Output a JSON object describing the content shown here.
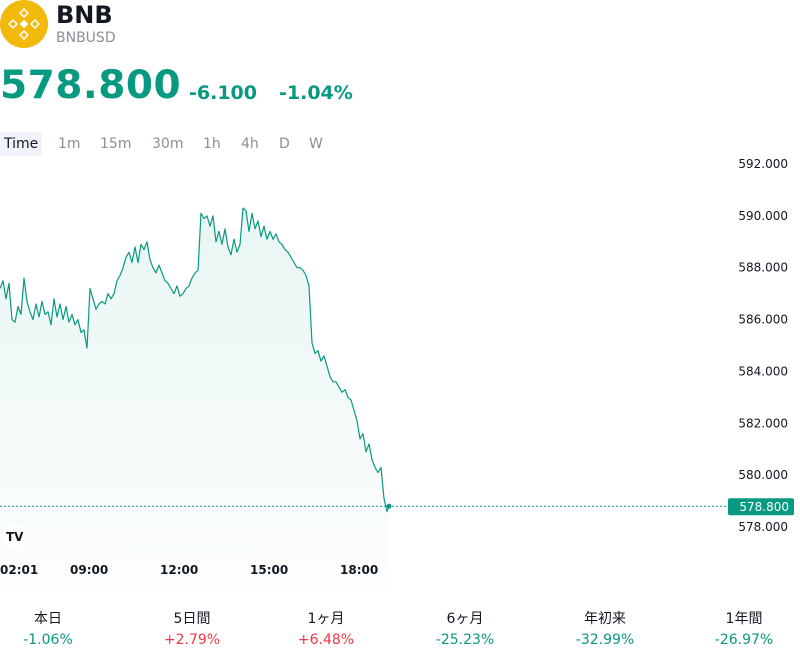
{
  "header": {
    "symbol": "BNB",
    "ticker": "BNBUSD",
    "logo_icon": "bnb-logo-icon",
    "price": "578.800",
    "change": "-6.100",
    "change_pct": "-1.04%"
  },
  "colors": {
    "accent": "#089981",
    "negative_perf": "#089981",
    "positive_perf": "#f23645",
    "logo": "#F0B90B"
  },
  "tabs": [
    {
      "label": "Time",
      "active": true
    },
    {
      "label": "1m"
    },
    {
      "label": "15m"
    },
    {
      "label": "30m"
    },
    {
      "label": "1h"
    },
    {
      "label": "4h"
    },
    {
      "label": "D"
    },
    {
      "label": "W"
    }
  ],
  "chart_data": {
    "type": "area",
    "ylim": [
      577.5,
      592.2
    ],
    "y_ticks": [
      "578.000",
      "580.000",
      "582.000",
      "584.000",
      "586.000",
      "588.000",
      "590.000",
      "592.000"
    ],
    "x_ticks": [
      "02:01",
      "09:00",
      "12:00",
      "15:00",
      "18:00"
    ],
    "last_price_label": "578.800",
    "watermark_icon": "tradingview-logo-icon",
    "points": [
      [
        0,
        587.2
      ],
      [
        3,
        587.5
      ],
      [
        6,
        586.8
      ],
      [
        9,
        587.4
      ],
      [
        12,
        586.0
      ],
      [
        15,
        585.9
      ],
      [
        18,
        586.5
      ],
      [
        21,
        586.2
      ],
      [
        24,
        587.6
      ],
      [
        27,
        586.7
      ],
      [
        30,
        586.3
      ],
      [
        33,
        586.0
      ],
      [
        36,
        586.6
      ],
      [
        39,
        586.1
      ],
      [
        42,
        586.7
      ],
      [
        45,
        586.2
      ],
      [
        48,
        586.3
      ],
      [
        51,
        585.8
      ],
      [
        54,
        586.8
      ],
      [
        57,
        586.1
      ],
      [
        60,
        586.6
      ],
      [
        63,
        586.0
      ],
      [
        66,
        586.5
      ],
      [
        69,
        585.9
      ],
      [
        72,
        586.2
      ],
      [
        75,
        585.8
      ],
      [
        78,
        586.0
      ],
      [
        81,
        585.5
      ],
      [
        84,
        585.6
      ],
      [
        87,
        584.9
      ],
      [
        90,
        587.2
      ],
      [
        93,
        586.8
      ],
      [
        96,
        586.4
      ],
      [
        99,
        586.6
      ],
      [
        102,
        586.7
      ],
      [
        105,
        586.6
      ],
      [
        108,
        587.0
      ],
      [
        111,
        586.8
      ],
      [
        114,
        587.0
      ],
      [
        117,
        587.5
      ],
      [
        120,
        587.7
      ],
      [
        123,
        588.0
      ],
      [
        126,
        588.4
      ],
      [
        129,
        588.6
      ],
      [
        132,
        588.2
      ],
      [
        135,
        588.8
      ],
      [
        138,
        588.2
      ],
      [
        141,
        588.9
      ],
      [
        144,
        588.7
      ],
      [
        147,
        589.0
      ],
      [
        150,
        588.3
      ],
      [
        153,
        588.0
      ],
      [
        156,
        587.8
      ],
      [
        159,
        588.1
      ],
      [
        162,
        587.8
      ],
      [
        165,
        587.5
      ],
      [
        168,
        587.4
      ],
      [
        171,
        587.2
      ],
      [
        174,
        587.0
      ],
      [
        177,
        587.3
      ],
      [
        180,
        586.9
      ],
      [
        183,
        587.0
      ],
      [
        186,
        587.2
      ],
      [
        189,
        587.3
      ],
      [
        192,
        587.6
      ],
      [
        195,
        587.8
      ],
      [
        198,
        587.9
      ],
      [
        201,
        590.1
      ],
      [
        204,
        589.9
      ],
      [
        207,
        590.0
      ],
      [
        210,
        589.6
      ],
      [
        213,
        590.0
      ],
      [
        216,
        589.0
      ],
      [
        219,
        589.4
      ],
      [
        222,
        588.9
      ],
      [
        225,
        589.5
      ],
      [
        228,
        588.8
      ],
      [
        231,
        588.5
      ],
      [
        234,
        589.1
      ],
      [
        237,
        588.6
      ],
      [
        240,
        588.9
      ],
      [
        243,
        590.3
      ],
      [
        246,
        590.2
      ],
      [
        249,
        589.4
      ],
      [
        252,
        590.1
      ],
      [
        255,
        589.5
      ],
      [
        258,
        589.8
      ],
      [
        261,
        589.2
      ],
      [
        264,
        589.6
      ],
      [
        267,
        589.1
      ],
      [
        270,
        589.4
      ],
      [
        273,
        589.1
      ],
      [
        276,
        589.3
      ],
      [
        279,
        589.0
      ],
      [
        282,
        588.9
      ],
      [
        285,
        588.7
      ],
      [
        288,
        588.6
      ],
      [
        291,
        588.4
      ],
      [
        294,
        588.2
      ],
      [
        297,
        588.0
      ],
      [
        300,
        588.0
      ],
      [
        303,
        587.9
      ],
      [
        306,
        587.7
      ],
      [
        309,
        587.3
      ],
      [
        312,
        585.1
      ],
      [
        315,
        584.7
      ],
      [
        318,
        584.8
      ],
      [
        321,
        584.4
      ],
      [
        324,
        584.6
      ],
      [
        327,
        584.2
      ],
      [
        330,
        583.8
      ],
      [
        333,
        583.6
      ],
      [
        336,
        583.6
      ],
      [
        339,
        583.4
      ],
      [
        342,
        583.2
      ],
      [
        345,
        583.3
      ],
      [
        348,
        583.0
      ],
      [
        351,
        582.9
      ],
      [
        354,
        582.5
      ],
      [
        357,
        582.1
      ],
      [
        360,
        581.4
      ],
      [
        363,
        581.6
      ],
      [
        366,
        580.9
      ],
      [
        369,
        581.2
      ],
      [
        372,
        580.6
      ],
      [
        375,
        580.3
      ],
      [
        378,
        580.1
      ],
      [
        381,
        580.3
      ],
      [
        384,
        579.1
      ],
      [
        387,
        578.6
      ],
      [
        389,
        578.8
      ]
    ]
  },
  "performance": [
    {
      "label": "本日",
      "value": "-1.06%",
      "sign": "neg"
    },
    {
      "label": "5日間",
      "value": "+2.79%",
      "sign": "pos"
    },
    {
      "label": "1ヶ月",
      "value": "+6.48%",
      "sign": "pos"
    },
    {
      "label": "6ヶ月",
      "value": "-25.23%",
      "sign": "neg"
    },
    {
      "label": "年初来",
      "value": "-32.99%",
      "sign": "neg"
    },
    {
      "label": "1年間",
      "value": "-26.97%",
      "sign": "neg"
    }
  ]
}
